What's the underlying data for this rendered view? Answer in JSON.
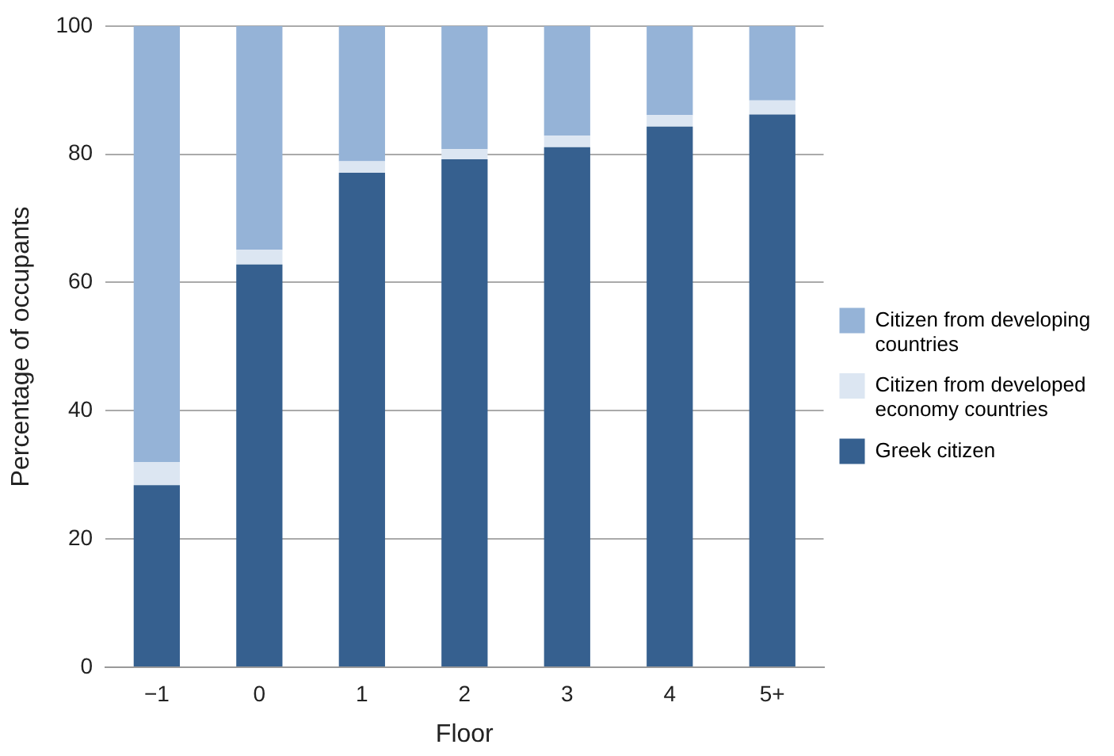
{
  "chart_data": {
    "type": "bar",
    "stacked": true,
    "xlabel": "Floor",
    "ylabel": "Percentage of occupants",
    "categories": [
      "−1",
      "0",
      "1",
      "2",
      "3",
      "4",
      "5+"
    ],
    "series": [
      {
        "name": "Greek citizen",
        "color": "#36608f",
        "values": [
          28.4,
          62.8,
          77.1,
          79.2,
          81.1,
          84.3,
          86.2
        ]
      },
      {
        "name": "Citizen from developed economy countries",
        "color": "#dce6f2",
        "values": [
          3.6,
          2.3,
          1.8,
          1.6,
          1.8,
          1.8,
          2.2
        ]
      },
      {
        "name": "Citizen from developing countries",
        "color": "#95b3d7",
        "values": [
          68,
          34.9,
          21.1,
          19.2,
          17.1,
          13.9,
          11.6
        ]
      }
    ],
    "ylim": [
      0,
      100
    ],
    "yticks": [
      0,
      20,
      40,
      60,
      80,
      100
    ],
    "grid": "y",
    "legend": "right"
  }
}
